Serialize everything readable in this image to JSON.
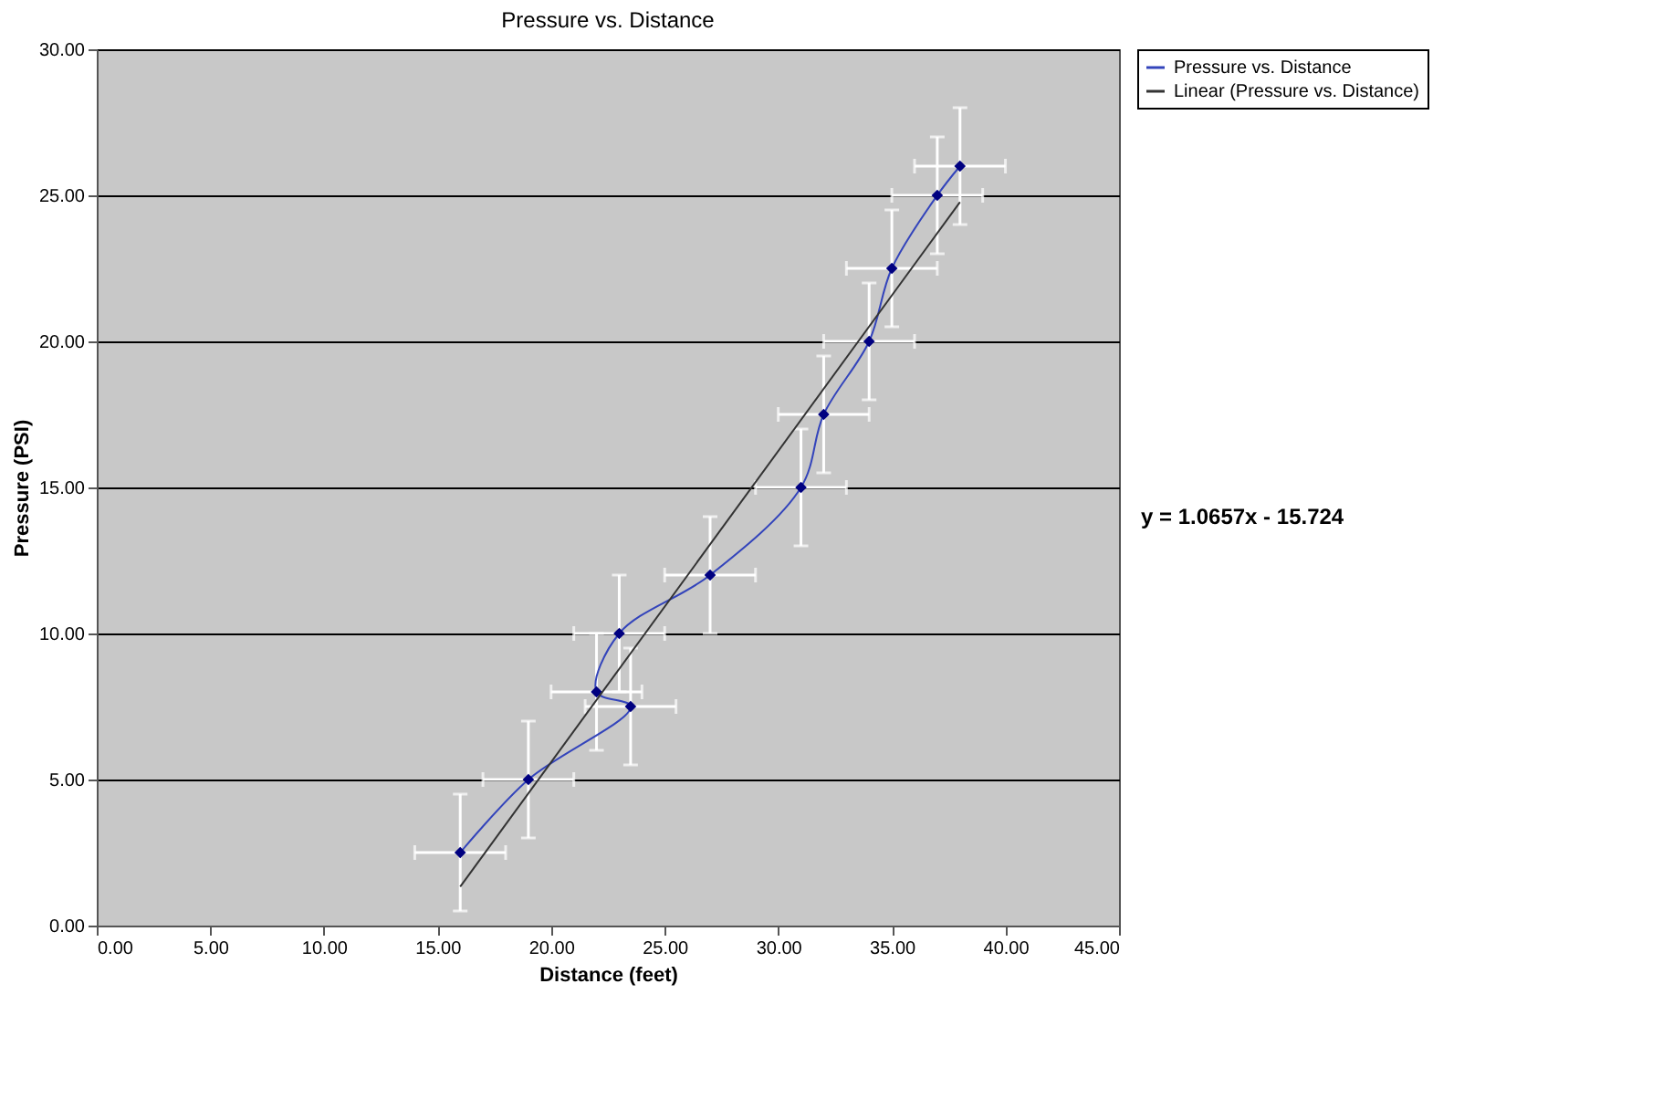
{
  "chart_data": {
    "type": "line",
    "title": "Pressure vs. Distance",
    "xlabel": "Distance (feet)",
    "ylabel": "Pressure (PSI)",
    "xlim": [
      0,
      45
    ],
    "ylim": [
      0,
      30
    ],
    "xticks": [
      {
        "value": 0,
        "label": "0.00"
      },
      {
        "value": 5,
        "label": "5.00"
      },
      {
        "value": 10,
        "label": "10.00"
      },
      {
        "value": 15,
        "label": "15.00"
      },
      {
        "value": 20,
        "label": "20.00"
      },
      {
        "value": 25,
        "label": "25.00"
      },
      {
        "value": 30,
        "label": "30.00"
      },
      {
        "value": 35,
        "label": "35.00"
      },
      {
        "value": 40,
        "label": "40.00"
      },
      {
        "value": 45,
        "label": "45.00"
      }
    ],
    "yticks": [
      {
        "value": 0,
        "label": "0.00"
      },
      {
        "value": 5,
        "label": "5.00"
      },
      {
        "value": 10,
        "label": "10.00"
      },
      {
        "value": 15,
        "label": "15.00"
      },
      {
        "value": 20,
        "label": "20.00"
      },
      {
        "value": 25,
        "label": "25.00"
      },
      {
        "value": 30,
        "label": "30.00"
      }
    ],
    "grid": "y",
    "legend": "right",
    "marker": "diamond",
    "line_style": "solid",
    "series": [
      {
        "name": "Pressure vs. Distance",
        "color": "#3344bb",
        "x": [
          16,
          19,
          23.5,
          22,
          23,
          27,
          31,
          32,
          34,
          35,
          37,
          38
        ],
        "values": [
          2.5,
          5,
          7.5,
          8,
          10,
          12,
          15,
          17.5,
          20,
          22.5,
          25,
          26
        ],
        "errors": [
          2,
          2,
          2,
          2,
          2,
          2,
          2,
          2,
          2,
          2,
          2,
          2
        ],
        "xerrors": [
          2,
          2,
          2,
          2,
          2,
          2,
          2,
          2,
          2,
          2,
          2,
          2
        ]
      },
      {
        "name": "Linear (Pressure vs. Distance)",
        "color": "#333333",
        "marker": "none",
        "x": [
          16,
          38
        ],
        "values": [
          1.33,
          24.77
        ]
      }
    ],
    "annotations": [
      "y = 1.0657x - 15.724"
    ]
  }
}
